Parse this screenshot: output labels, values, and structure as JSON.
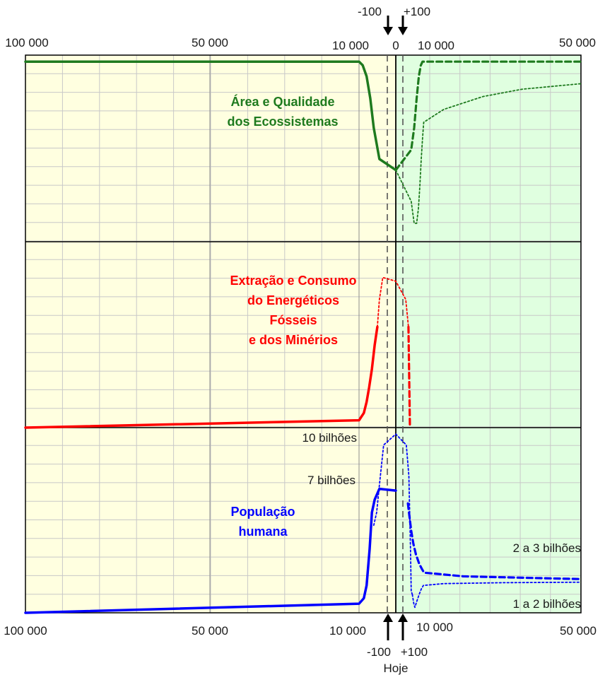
{
  "chart_data": {
    "type": "line",
    "axis": {
      "top_ticks_left": [
        "100 000",
        "50 000",
        "10 000"
      ],
      "top_ticks_right": [
        "10 000",
        "50 000"
      ],
      "bottom_ticks_left": [
        "100 000",
        "50 000",
        "10 000"
      ],
      "bottom_ticks_right": [
        "10 000",
        "50 000"
      ],
      "center_label": "0",
      "minus_label": "-100",
      "plus_label": "+100",
      "today_label": "Hoje"
    },
    "colors": {
      "past_bg": "#ffffe0",
      "future_bg": "#e0ffe0",
      "ecosystems": "#1e7a1e",
      "fossil": "#ff0000",
      "population": "#0000ff",
      "grid": "#c8c8c8"
    },
    "panels": [
      {
        "id": "ecosystems",
        "title_lines": [
          "Área e Qualidade",
          "dos Ecossistemas"
        ],
        "color": "#1e7a1e"
      },
      {
        "id": "fossil",
        "title_lines": [
          "Extração e Consumo",
          "do Energéticos",
          "Fósseis",
          "e dos Minérios"
        ],
        "color": "#ff0000"
      },
      {
        "id": "population",
        "title_lines": [
          "População",
          "humana"
        ],
        "color": "#0000ff"
      }
    ],
    "annotations": {
      "pop_high_peak": "10 bilhões",
      "pop_peak": "7 bilhões",
      "pop_future_high": "2 a 3 bilhões",
      "pop_future_low": "1 a 2 bilhões"
    },
    "series": [
      {
        "panel": "ecosystems",
        "style": "solid",
        "points": [
          [
            -100000,
            0.98
          ],
          [
            -10000,
            0.98
          ],
          [
            -4000,
            0.96
          ],
          [
            -1500,
            0.9
          ],
          [
            -600,
            0.78
          ],
          [
            -250,
            0.62
          ],
          [
            -60,
            0.45
          ],
          [
            0,
            0.39
          ]
        ]
      },
      {
        "panel": "ecosystems",
        "style": "dashed",
        "points": [
          [
            0,
            0.39
          ],
          [
            150,
            0.5
          ],
          [
            400,
            0.62
          ],
          [
            900,
            0.78
          ],
          [
            1800,
            0.9
          ],
          [
            3500,
            0.96
          ],
          [
            6000,
            0.98
          ],
          [
            50000,
            0.98
          ]
        ]
      },
      {
        "panel": "ecosystems",
        "style": "dotted",
        "points": [
          [
            0,
            0.39
          ],
          [
            150,
            0.22
          ],
          [
            400,
            0.1
          ],
          [
            900,
            0.1
          ],
          [
            1600,
            0.18
          ],
          [
            2500,
            0.3
          ],
          [
            4000,
            0.45
          ],
          [
            6000,
            0.56
          ],
          [
            9000,
            0.65
          ],
          [
            15000,
            0.72
          ],
          [
            25000,
            0.79
          ],
          [
            35000,
            0.83
          ],
          [
            50000,
            0.86
          ]
        ]
      },
      {
        "panel": "fossil",
        "style": "solid",
        "points": [
          [
            -100000,
            0.0
          ],
          [
            -10000,
            0.04
          ],
          [
            -3000,
            0.08
          ],
          [
            -1500,
            0.14
          ],
          [
            -800,
            0.22
          ],
          [
            -400,
            0.32
          ],
          [
            -200,
            0.45
          ],
          [
            -100,
            0.55
          ]
        ]
      },
      {
        "panel": "fossil",
        "style": "dotted",
        "points": [
          [
            -100,
            0.55
          ],
          [
            -60,
            0.7
          ],
          [
            -25,
            0.82
          ],
          [
            0,
            0.8
          ],
          [
            25,
            0.7
          ],
          [
            60,
            0.55
          ]
        ]
      },
      {
        "panel": "fossil",
        "style": "dashed",
        "points": [
          [
            60,
            0.55
          ],
          [
            100,
            0.0
          ]
        ]
      },
      {
        "panel": "population",
        "style": "solid",
        "points": [
          [
            -100000,
            0.0
          ],
          [
            -10000,
            0.05
          ],
          [
            -3000,
            0.08
          ],
          [
            -1500,
            0.15
          ],
          [
            -700,
            0.35
          ],
          [
            -400,
            0.55
          ],
          [
            -200,
            0.62
          ],
          [
            -60,
            0.68
          ],
          [
            0,
            0.67
          ]
        ]
      },
      {
        "panel": "population",
        "style": "dotted",
        "points": [
          [
            -250,
            0.48
          ],
          [
            -120,
            0.55
          ],
          [
            -60,
            0.7
          ],
          [
            -20,
            0.92
          ],
          [
            0,
            0.98
          ],
          [
            30,
            0.92
          ],
          [
            70,
            0.75
          ],
          [
            120,
            0.35
          ],
          [
            150,
            0.12
          ],
          [
            220,
            0.1
          ]
        ]
      },
      {
        "panel": "population",
        "style": "dashed",
        "points": [
          [
            50,
            0.6
          ],
          [
            150,
            0.45
          ],
          [
            300,
            0.38
          ],
          [
            700,
            0.32
          ],
          [
            2000,
            0.27
          ],
          [
            5000,
            0.24
          ],
          [
            10000,
            0.22
          ],
          [
            20000,
            0.2
          ],
          [
            30000,
            0.195
          ],
          [
            50000,
            0.185
          ]
        ]
      },
      {
        "panel": "population",
        "style": "dotted",
        "points": [
          [
            220,
            0.1
          ],
          [
            350,
            0.05
          ],
          [
            500,
            0.03
          ],
          [
            900,
            0.06
          ],
          [
            2000,
            0.1
          ],
          [
            4000,
            0.13
          ],
          [
            8000,
            0.15
          ],
          [
            15000,
            0.16
          ],
          [
            30000,
            0.165
          ],
          [
            50000,
            0.168
          ]
        ]
      }
    ]
  }
}
